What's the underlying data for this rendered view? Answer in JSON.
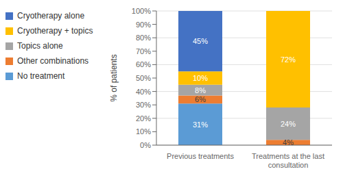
{
  "chart_data": {
    "type": "bar",
    "stacked": true,
    "data_labels": true,
    "grid": true,
    "legend": "left",
    "ylabel": "% of patients",
    "categories": [
      "Previous treatments",
      "Treatments at the last\nconsultation"
    ],
    "ylim": [
      0,
      100
    ],
    "yticks": [
      {
        "value": 0,
        "label": "0%"
      },
      {
        "value": 10,
        "label": "10%"
      },
      {
        "value": 20,
        "label": "20%"
      },
      {
        "value": 30,
        "label": "30%"
      },
      {
        "value": 40,
        "label": "40%"
      },
      {
        "value": 50,
        "label": "50%"
      },
      {
        "value": 60,
        "label": "60%"
      },
      {
        "value": 70,
        "label": "70%"
      },
      {
        "value": 80,
        "label": "80%"
      },
      {
        "value": 90,
        "label": "90%"
      },
      {
        "value": 100,
        "label": "100%"
      }
    ],
    "series": [
      {
        "name": "No treatment",
        "color": "#5B9BD5",
        "values": [
          31,
          0
        ],
        "value_labels": [
          "31%",
          null
        ]
      },
      {
        "name": "Other combinations",
        "color": "#ED7D31",
        "values": [
          6,
          4
        ],
        "value_labels": [
          "6%",
          "4%"
        ]
      },
      {
        "name": "Topics alone",
        "color": "#A5A5A5",
        "values": [
          8,
          24
        ],
        "value_labels": [
          "8%",
          "24%"
        ]
      },
      {
        "name": "Cryotherapy + topics",
        "color": "#FFC000",
        "values": [
          10,
          72
        ],
        "value_labels": [
          "10%",
          "72%"
        ]
      },
      {
        "name": "Cryotherapy alone",
        "color": "#4472C4",
        "values": [
          45,
          0
        ],
        "value_labels": [
          "45%",
          null
        ]
      }
    ]
  }
}
